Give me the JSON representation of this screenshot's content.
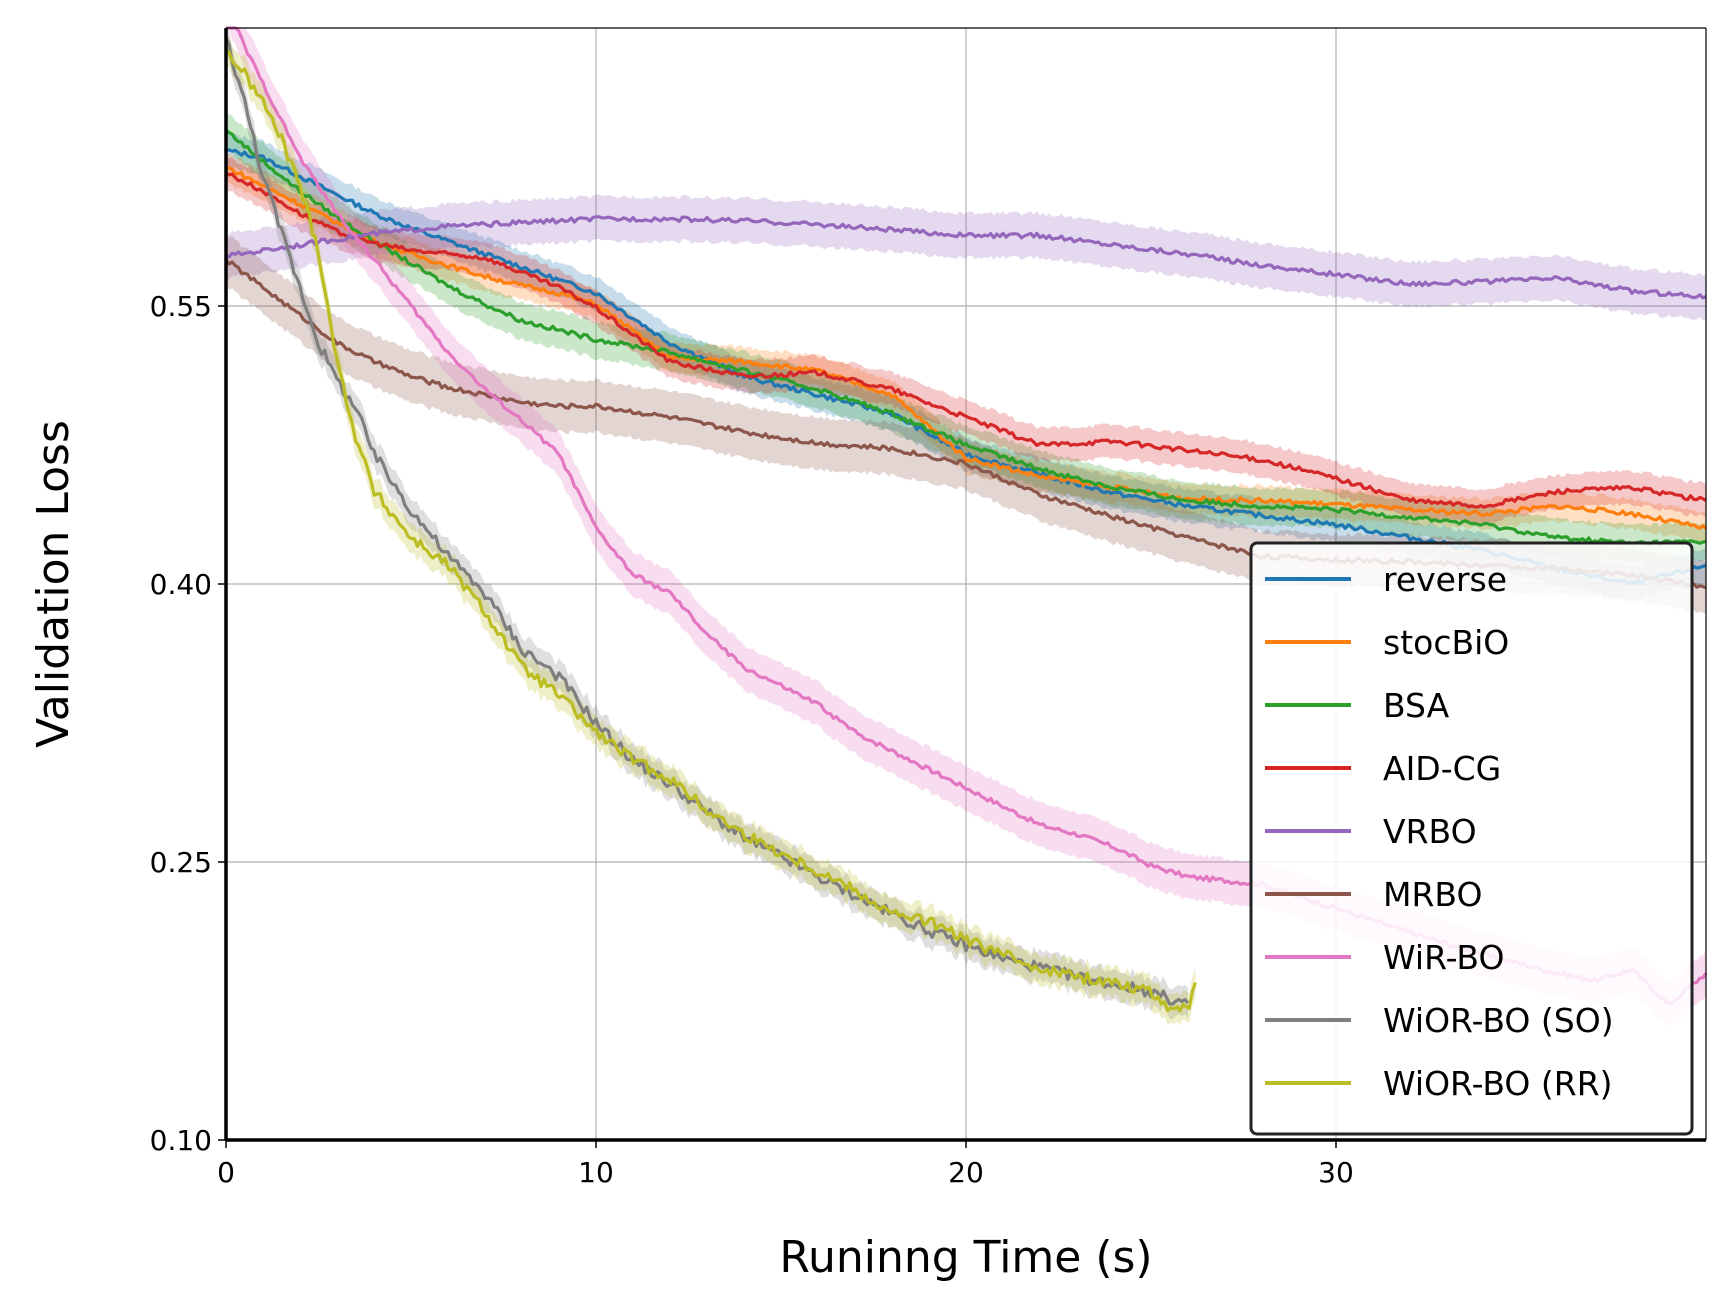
{
  "chart_data": {
    "type": "line",
    "title": "",
    "xlabel": "Runinng Time (s)",
    "ylabel": "Validation Loss",
    "xlim": [
      0,
      40
    ],
    "ylim": [
      0.1,
      0.7
    ],
    "xticks": [
      0,
      10,
      20,
      30
    ],
    "xtick_labels": [
      "0",
      "10",
      "20",
      "30"
    ],
    "yticks": [
      0.1,
      0.25,
      0.4,
      0.55
    ],
    "ytick_labels": [
      "0.10",
      "0.25",
      "0.40",
      "0.55"
    ],
    "grid": true,
    "legend_position": "lower-right",
    "series": [
      {
        "name": "reverse",
        "color": "#1f77b4",
        "band": 0.009,
        "x": [
          0,
          1,
          2,
          3,
          4,
          5,
          6,
          7,
          8,
          9,
          10,
          12,
          14,
          16,
          18,
          20,
          22,
          24,
          26,
          28,
          30,
          32,
          34,
          36,
          38,
          40
        ],
        "y": [
          0.634,
          0.63,
          0.62,
          0.61,
          0.6,
          0.592,
          0.585,
          0.578,
          0.571,
          0.564,
          0.557,
          0.53,
          0.512,
          0.502,
          0.492,
          0.47,
          0.459,
          0.449,
          0.442,
          0.437,
          0.432,
          0.425,
          0.418,
          0.408,
          0.4,
          0.41
        ]
      },
      {
        "name": "stocBiO",
        "color": "#ff7f0e",
        "band": 0.008,
        "x": [
          0,
          1,
          2,
          3,
          4,
          5,
          6,
          7,
          8,
          9,
          10,
          12,
          14,
          16,
          18,
          20,
          22,
          24,
          26,
          28,
          30,
          32,
          34,
          36,
          38,
          40
        ],
        "y": [
          0.625,
          0.615,
          0.605,
          0.595,
          0.585,
          0.578,
          0.572,
          0.566,
          0.561,
          0.557,
          0.551,
          0.522,
          0.52,
          0.515,
          0.502,
          0.468,
          0.458,
          0.452,
          0.446,
          0.445,
          0.443,
          0.44,
          0.438,
          0.442,
          0.438,
          0.43
        ]
      },
      {
        "name": "BSA",
        "color": "#2ca02c",
        "band": 0.01,
        "x": [
          0,
          1,
          2,
          3,
          4,
          5,
          6,
          7,
          8,
          9,
          10,
          12,
          14,
          16,
          18,
          20,
          22,
          24,
          26,
          28,
          30,
          32,
          34,
          36,
          38,
          40
        ],
        "y": [
          0.645,
          0.628,
          0.612,
          0.598,
          0.585,
          0.573,
          0.561,
          0.551,
          0.542,
          0.537,
          0.532,
          0.525,
          0.515,
          0.505,
          0.492,
          0.475,
          0.462,
          0.452,
          0.445,
          0.442,
          0.44,
          0.436,
          0.432,
          0.425,
          0.422,
          0.423
        ]
      },
      {
        "name": "AID-CG",
        "color": "#d62728",
        "band": 0.009,
        "x": [
          0,
          1,
          2,
          3,
          4,
          5,
          6,
          7,
          8,
          9,
          10,
          12,
          14,
          16,
          18,
          20,
          22,
          24,
          26,
          28,
          30,
          32,
          34,
          36,
          38,
          40
        ],
        "y": [
          0.622,
          0.612,
          0.6,
          0.59,
          0.584,
          0.58,
          0.578,
          0.576,
          0.568,
          0.56,
          0.549,
          0.52,
          0.512,
          0.514,
          0.505,
          0.49,
          0.475,
          0.477,
          0.472,
          0.467,
          0.457,
          0.445,
          0.442,
          0.45,
          0.452,
          0.445
        ]
      },
      {
        "name": "VRBO",
        "color": "#9467bd",
        "band": 0.012,
        "x": [
          0,
          2,
          4,
          6,
          8,
          10,
          12,
          14,
          16,
          18,
          20,
          22,
          24,
          26,
          28,
          30,
          32,
          34,
          36,
          38,
          40
        ],
        "y": [
          0.577,
          0.583,
          0.589,
          0.593,
          0.595,
          0.597,
          0.597,
          0.596,
          0.594,
          0.591,
          0.588,
          0.588,
          0.583,
          0.578,
          0.572,
          0.567,
          0.562,
          0.563,
          0.565,
          0.558,
          0.555
        ]
      },
      {
        "name": "MRBO",
        "color": "#8c564b",
        "band": 0.014,
        "x": [
          0,
          1,
          2,
          3,
          4,
          5,
          6,
          7,
          8,
          9,
          10,
          12,
          14,
          16,
          18,
          20,
          22,
          24,
          26,
          28,
          30,
          32,
          34,
          36,
          38,
          40
        ],
        "y": [
          0.575,
          0.56,
          0.545,
          0.53,
          0.52,
          0.512,
          0.506,
          0.502,
          0.498,
          0.496,
          0.496,
          0.49,
          0.482,
          0.476,
          0.473,
          0.465,
          0.448,
          0.436,
          0.425,
          0.415,
          0.413,
          0.412,
          0.41,
          0.408,
          0.405,
          0.398
        ]
      },
      {
        "name": "WiR-BO",
        "color": "#e377c2",
        "band": 0.012,
        "x": [
          0,
          0.5,
          1,
          2,
          3,
          4,
          5,
          6,
          7,
          8,
          9,
          10,
          11,
          12,
          13,
          14,
          15,
          16,
          17,
          18,
          19,
          20,
          21,
          22,
          23,
          24,
          25,
          26,
          28,
          30,
          32,
          34,
          36,
          37,
          38,
          39,
          40
        ],
        "y": [
          0.715,
          0.69,
          0.67,
          0.63,
          0.6,
          0.575,
          0.55,
          0.525,
          0.505,
          0.488,
          0.47,
          0.43,
          0.405,
          0.395,
          0.373,
          0.355,
          0.345,
          0.335,
          0.32,
          0.31,
          0.3,
          0.29,
          0.28,
          0.27,
          0.265,
          0.258,
          0.248,
          0.242,
          0.238,
          0.225,
          0.212,
          0.2,
          0.19,
          0.186,
          0.192,
          0.173,
          0.19
        ]
      },
      {
        "name": "WiOR-BO (SO)",
        "color": "#7f7f7f",
        "band": 0.008,
        "x": [
          0,
          0.5,
          1,
          2,
          2.5,
          3,
          3.5,
          4,
          5,
          6,
          7,
          8,
          9,
          10,
          11,
          12,
          13,
          14,
          15,
          16,
          17,
          18,
          19,
          20,
          21,
          22,
          23,
          24,
          25,
          25.5,
          26
        ],
        "y": [
          0.695,
          0.66,
          0.62,
          0.56,
          0.53,
          0.51,
          0.495,
          0.47,
          0.44,
          0.415,
          0.395,
          0.365,
          0.35,
          0.325,
          0.305,
          0.292,
          0.277,
          0.263,
          0.253,
          0.242,
          0.232,
          0.222,
          0.213,
          0.205,
          0.198,
          0.193,
          0.188,
          0.184,
          0.18,
          0.176,
          0.174
        ]
      },
      {
        "name": "WiOR-BO (RR)",
        "color": "#bcbd22",
        "band": 0.008,
        "x": [
          0,
          0.5,
          1,
          1.5,
          2,
          2.5,
          3,
          3.5,
          4,
          5,
          6,
          7,
          8,
          9,
          10,
          11,
          12,
          13,
          14,
          15,
          16,
          17,
          18,
          19,
          20,
          21,
          22,
          23,
          24,
          25,
          25.5,
          26,
          26.2
        ],
        "y": [
          0.688,
          0.675,
          0.66,
          0.64,
          0.615,
          0.58,
          0.52,
          0.48,
          0.45,
          0.425,
          0.41,
          0.385,
          0.355,
          0.34,
          0.32,
          0.305,
          0.295,
          0.278,
          0.265,
          0.255,
          0.245,
          0.235,
          0.222,
          0.218,
          0.208,
          0.2,
          0.193,
          0.188,
          0.185,
          0.18,
          0.172,
          0.17,
          0.185
        ]
      }
    ]
  }
}
